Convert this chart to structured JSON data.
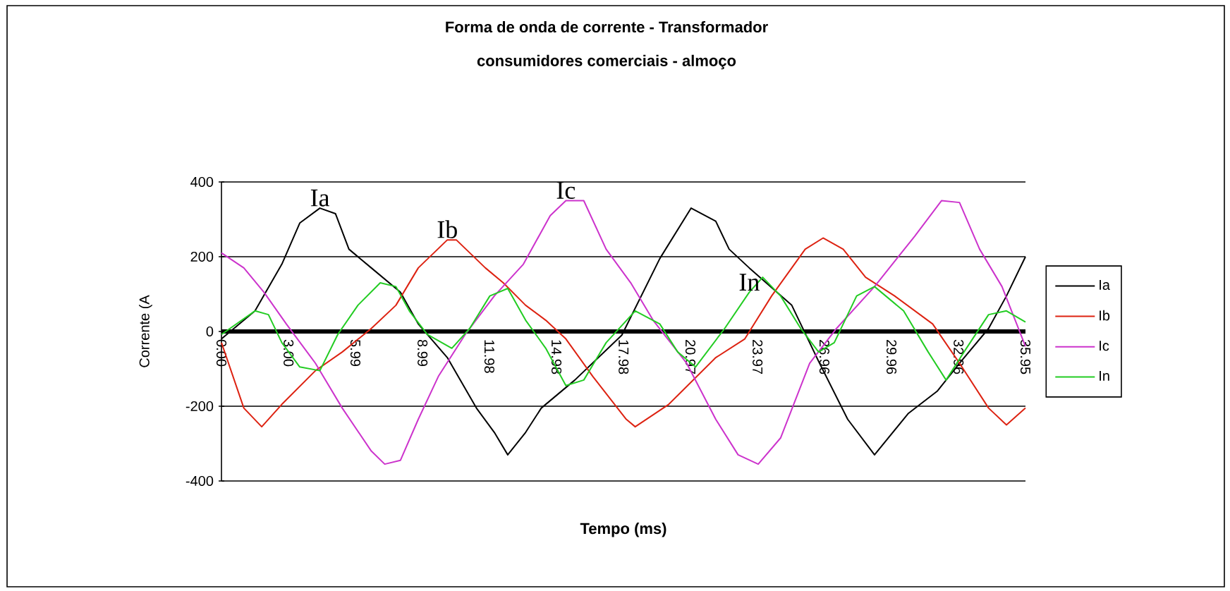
{
  "chart_data": {
    "type": "line",
    "title": "Forma de onda de corrente - Transformador",
    "subtitle": "consumidores comerciais - almoço",
    "xlabel": "Tempo (ms)",
    "ylabel": "Corrente (A",
    "xlim": [
      0,
      35.95
    ],
    "ylim": [
      -400,
      400
    ],
    "xticks": [
      {
        "value": 0,
        "label": "0.00"
      },
      {
        "value": 3.0,
        "label": "3.00"
      },
      {
        "value": 5.99,
        "label": "5.99"
      },
      {
        "value": 8.99,
        "label": "8.99"
      },
      {
        "value": 11.98,
        "label": "11.98"
      },
      {
        "value": 14.98,
        "label": "14.98"
      },
      {
        "value": 17.98,
        "label": "17.98"
      },
      {
        "value": 20.97,
        "label": "20.97"
      },
      {
        "value": 23.97,
        "label": "23.97"
      },
      {
        "value": 26.96,
        "label": "26.96"
      },
      {
        "value": 29.96,
        "label": "29.96"
      },
      {
        "value": 32.96,
        "label": "32.96"
      },
      {
        "value": 35.95,
        "label": "35.95"
      }
    ],
    "yticks": [
      -400,
      -200,
      0,
      200,
      400
    ],
    "grid": "y",
    "legend": "right",
    "marker": "none",
    "line_style": "solid",
    "series": [
      {
        "name": "Ia",
        "color": "#000000",
        "x": [
          0,
          1.5,
          2.7,
          3.5,
          4.4,
          5.1,
          5.7,
          6.7,
          8.0,
          8.8,
          10.1,
          11.4,
          12.2,
          12.8,
          13.6,
          14.3,
          15.8,
          17.9,
          19.6,
          21.0,
          22.1,
          22.7,
          23.6,
          25.5,
          26.7,
          28.0,
          29.2,
          30.7,
          32.0,
          33.0,
          34.3,
          35.1,
          35.95
        ],
        "values": [
          -20,
          55,
          180,
          290,
          330,
          315,
          220,
          170,
          105,
          20,
          -70,
          -205,
          -270,
          -330,
          -270,
          -205,
          -130,
          -10,
          195,
          330,
          295,
          220,
          170,
          70,
          -80,
          -235,
          -330,
          -220,
          -160,
          -85,
          8,
          95,
          200
        ]
      },
      {
        "name": "Ib",
        "color": "#dd2211",
        "x": [
          0,
          1.0,
          1.8,
          2.7,
          4.2,
          5.4,
          6.7,
          7.8,
          8.8,
          10.1,
          10.5,
          11.8,
          12.6,
          13.6,
          14.5,
          15.4,
          16.6,
          18.1,
          18.5,
          20.0,
          22.1,
          23.4,
          24.6,
          26.1,
          26.9,
          27.8,
          28.8,
          30.1,
          31.8,
          33.0,
          34.3,
          35.1,
          35.95
        ],
        "values": [
          -30,
          -205,
          -255,
          -195,
          -105,
          -55,
          8,
          70,
          170,
          245,
          245,
          170,
          130,
          70,
          30,
          -20,
          -120,
          -235,
          -255,
          -195,
          -70,
          -20,
          95,
          220,
          250,
          220,
          145,
          95,
          20,
          -85,
          -205,
          -250,
          -205
        ]
      },
      {
        "name": "Ic",
        "color": "#cc33cc",
        "x": [
          0,
          1.0,
          1.9,
          2.9,
          4.2,
          5.4,
          6.7,
          7.3,
          8.0,
          8.8,
          9.7,
          10.9,
          12.2,
          13.5,
          14.7,
          15.4,
          16.2,
          17.2,
          18.3,
          19.3,
          20.8,
          22.1,
          23.1,
          24.0,
          25.0,
          26.3,
          27.5,
          29.2,
          31.0,
          32.2,
          33.0,
          33.9,
          34.9,
          35.95
        ],
        "values": [
          210,
          170,
          105,
          20,
          -85,
          -205,
          -320,
          -355,
          -345,
          -235,
          -120,
          -8,
          95,
          180,
          310,
          350,
          350,
          220,
          130,
          30,
          -85,
          -235,
          -330,
          -355,
          -285,
          -85,
          8,
          120,
          255,
          350,
          345,
          220,
          120,
          -40
        ]
      },
      {
        "name": "In",
        "color": "#22cc22",
        "x": [
          0,
          1.5,
          2.1,
          2.7,
          3.5,
          4.4,
          5.2,
          6.1,
          7.1,
          7.8,
          8.4,
          9.2,
          10.3,
          11.1,
          12.0,
          12.8,
          13.6,
          14.5,
          15.4,
          16.2,
          17.2,
          18.5,
          19.6,
          20.4,
          21.2,
          22.5,
          23.6,
          24.2,
          25.0,
          25.9,
          26.7,
          27.4,
          28.4,
          29.2,
          30.5,
          31.6,
          32.4,
          33.2,
          34.3,
          35.1,
          35.95
        ],
        "values": [
          -8,
          55,
          45,
          -30,
          -95,
          -105,
          -8,
          70,
          130,
          120,
          55,
          -8,
          -45,
          8,
          95,
          115,
          30,
          -45,
          -145,
          -130,
          -30,
          55,
          20,
          -55,
          -95,
          8,
          105,
          145,
          95,
          8,
          -55,
          -30,
          95,
          120,
          55,
          -55,
          -130,
          -55,
          45,
          55,
          25
        ]
      }
    ],
    "annotations": [
      {
        "text": "Ia",
        "x": 4.4,
        "y": 330
      },
      {
        "text": "Ib",
        "x": 10.1,
        "y": 245
      },
      {
        "text": "Ic",
        "x": 15.4,
        "y": 350
      },
      {
        "text": "In",
        "x": 23.6,
        "y": 105
      }
    ]
  }
}
